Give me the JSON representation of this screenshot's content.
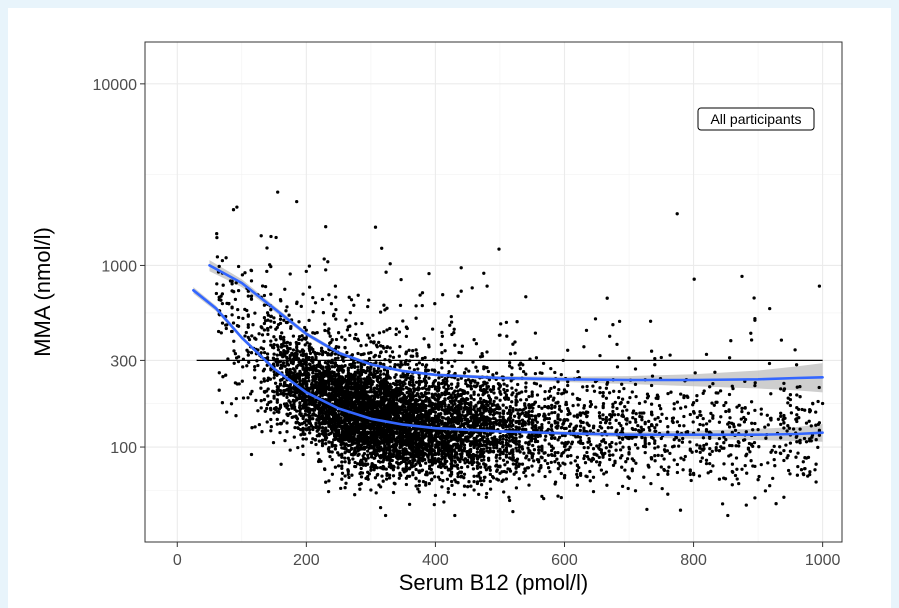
{
  "chart_data": {
    "type": "scatter",
    "title": "",
    "xlabel": "Serum B12 (pmol/l)",
    "ylabel": "MMA (nmol/l)",
    "xlim": [
      -50,
      1030
    ],
    "ylim": [
      30,
      17000
    ],
    "y_scale": "log",
    "x_ticks": [
      0,
      200,
      400,
      600,
      800,
      1000
    ],
    "x_tick_labels": [
      "0",
      "200",
      "400",
      "600",
      "800",
      "1000"
    ],
    "y_ticks": [
      100,
      300,
      1000,
      10000
    ],
    "y_tick_labels": [
      "100",
      "300",
      "1000",
      "10000"
    ],
    "grid": true,
    "annotation": "All participants",
    "annotation_position": "top-right",
    "colors": {
      "points": "#000000",
      "smooth": "#3366ff",
      "band": "#bdbdbd",
      "reference": "#000000",
      "grid": "#ebebeb",
      "panel_border": "#333333"
    },
    "reference_line": {
      "y": 300,
      "x": [
        30,
        1000
      ]
    },
    "smooth_lines": [
      {
        "x": [
          25,
          60,
          100,
          150,
          200,
          250,
          300,
          350,
          400,
          500,
          600,
          700,
          800,
          900,
          960,
          1000
        ],
        "y": [
          730,
          580,
          400,
          270,
          200,
          163,
          143,
          133,
          127,
          122,
          119,
          117,
          117,
          117,
          118,
          120
        ],
        "band_low": [
          700,
          560,
          390,
          264,
          196,
          160,
          141,
          131,
          125,
          120,
          116,
          113,
          111,
          109,
          108,
          107
        ],
        "band_high": [
          760,
          600,
          410,
          276,
          204,
          166,
          145,
          135,
          129,
          124,
          122,
          121,
          123,
          126,
          129,
          134
        ]
      },
      {
        "x": [
          50,
          100,
          150,
          200,
          250,
          300,
          350,
          400,
          500,
          600,
          700,
          800,
          900,
          960,
          1000
        ],
        "y": [
          1000,
          800,
          580,
          420,
          330,
          285,
          262,
          250,
          240,
          236,
          234,
          234,
          236,
          240,
          242
        ],
        "band_low": [
          930,
          760,
          560,
          408,
          322,
          279,
          257,
          245,
          234,
          228,
          222,
          216,
          210,
          205,
          200
        ],
        "band_high": [
          1070,
          840,
          600,
          432,
          338,
          291,
          267,
          255,
          246,
          244,
          246,
          252,
          264,
          278,
          290
        ]
      }
    ]
  }
}
